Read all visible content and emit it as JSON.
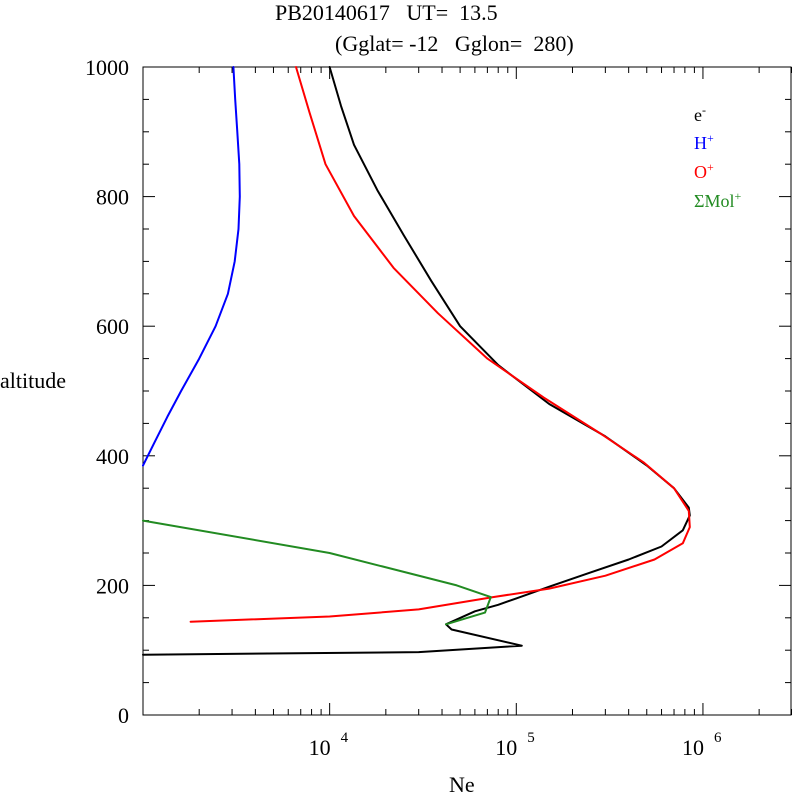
{
  "chart_data": {
    "type": "line",
    "title_line1": "PB20140617   UT=  13.5",
    "title_line2": "(Gglat= -12   Gglon=  280)",
    "xlabel": "Ne",
    "ylabel": "altitude",
    "x_scale": "log",
    "xlim": [
      1000,
      3000000
    ],
    "ylim": [
      0,
      1000
    ],
    "y_ticks": [
      0,
      200,
      400,
      600,
      800,
      1000
    ],
    "y_tick_labels": [
      "0",
      "200",
      "400",
      "600",
      "800",
      "1000"
    ],
    "x_tick_labels": [
      {
        "value": 10000,
        "base": "10",
        "exp": "4"
      },
      {
        "value": 100000,
        "base": "10",
        "exp": "5"
      },
      {
        "value": 1000000,
        "base": "10",
        "exp": "6"
      }
    ],
    "legend_position": "top-right",
    "series": [
      {
        "name": "e",
        "sup": "-",
        "color": "#000000",
        "x": [
          1000,
          30000,
          107000,
          45000,
          42000,
          60000,
          80000,
          100000,
          150000,
          250000,
          400000,
          600000,
          780000,
          850000,
          840000,
          700000,
          500000,
          300000,
          150000,
          80000,
          50000,
          35000,
          25000,
          18000,
          13500,
          11500,
          10000
        ],
        "y": [
          93,
          97,
          107,
          132,
          140,
          160,
          170,
          180,
          198,
          220,
          240,
          260,
          285,
          308,
          320,
          350,
          385,
          430,
          480,
          540,
          600,
          670,
          740,
          810,
          880,
          940,
          1000
        ]
      },
      {
        "name": "H",
        "sup": "+",
        "color": "#0000ff",
        "x": [
          1000,
          1150,
          1350,
          1600,
          2000,
          2450,
          2850,
          3100,
          3250,
          3300,
          3280,
          3200,
          3120,
          3050
        ],
        "y": [
          385,
          420,
          460,
          500,
          550,
          600,
          650,
          700,
          750,
          800,
          850,
          900,
          950,
          1000
        ]
      },
      {
        "name": "O",
        "sup": "+",
        "color": "#ff0000",
        "x": [
          1800,
          10000,
          30000,
          75000,
          150000,
          300000,
          550000,
          780000,
          850000,
          840000,
          700000,
          480000,
          280000,
          140000,
          70000,
          38000,
          22000,
          13500,
          9500,
          7800,
          6600
        ],
        "y": [
          144,
          152,
          163,
          182,
          195,
          215,
          240,
          265,
          290,
          315,
          350,
          390,
          435,
          490,
          550,
          620,
          690,
          770,
          850,
          930,
          1000
        ]
      },
      {
        "name": "ΣMol",
        "sup": "+",
        "color": "#228b22",
        "x": [
          42000,
          68000,
          73000,
          48000,
          10000,
          1000
        ],
        "y": [
          140,
          158,
          182,
          200,
          250,
          300
        ]
      }
    ]
  }
}
